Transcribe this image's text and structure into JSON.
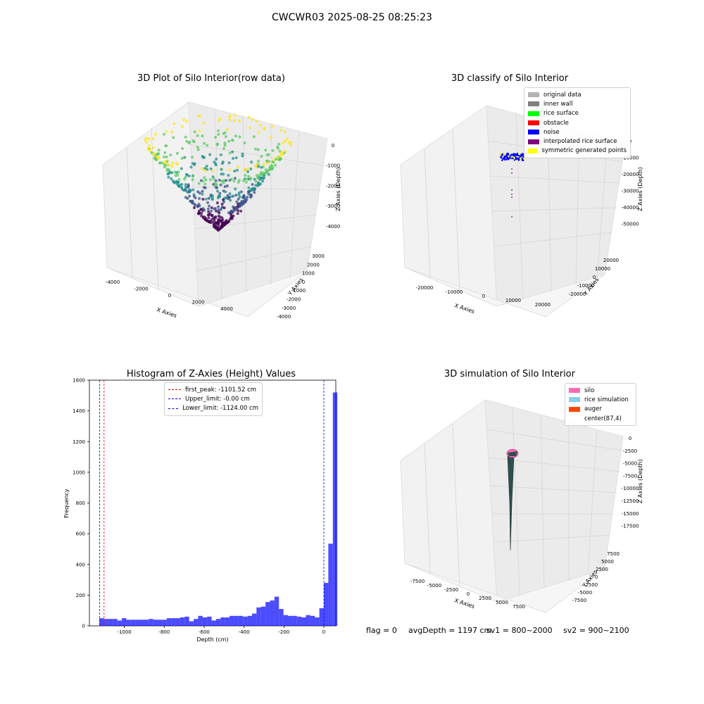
{
  "figure": {
    "title": "CWCWR03 2025-08-25 08:25:23"
  },
  "panels": {
    "raw": {
      "title": "3D Plot of Silo Interior(row data)",
      "x_label": "X Axies",
      "y_label": "Y Axies",
      "z_label": "Z Axies (Depth)",
      "x_ticks": [
        "-4000",
        "-2000",
        "0",
        "2000",
        "4000"
      ],
      "y_ticks": [
        "3000",
        "2000",
        "1000",
        "0",
        "-1000",
        "-2000",
        "-3000",
        "-4000"
      ],
      "z_ticks": [
        "0",
        "-1000",
        "-2000",
        "-3000",
        "-4000"
      ],
      "colormap": [
        "#440154",
        "#3b528b",
        "#21908c",
        "#5dc963",
        "#fde725"
      ]
    },
    "classify": {
      "title": "3D classify of Silo Interior",
      "x_label": "X Axies",
      "y_label": "Y Axies",
      "z_label": "Z Axies (Depth)",
      "x_ticks": [
        "-20000",
        "-10000",
        "0",
        "10000",
        "20000"
      ],
      "y_ticks": [
        "20000",
        "10000",
        "0",
        "-10000",
        "-20000"
      ],
      "z_ticks": [
        "0",
        "-10000",
        "-20000",
        "-30000",
        "-40000",
        "-50000"
      ],
      "legend": [
        {
          "label": "original data",
          "color": "#b3b3b3"
        },
        {
          "label": "inner wall",
          "color": "#808080"
        },
        {
          "label": "rice surface",
          "color": "#00ff00"
        },
        {
          "label": "obstacle",
          "color": "#ff0000"
        },
        {
          "label": "noise",
          "color": "#0000ff"
        },
        {
          "label": "interpolated rice surface",
          "color": "#800080"
        },
        {
          "label": "symmetric generated points",
          "color": "#ffff00"
        }
      ]
    },
    "histogram": {
      "title": "Histogram of Z-Axies (Height) Values",
      "x_label": "Depth (cm)",
      "y_label": "Frequency",
      "x_ticks": [
        "-1000",
        "-800",
        "-600",
        "-400",
        "-200",
        "0"
      ],
      "y_ticks": [
        "0",
        "200",
        "400",
        "600",
        "800",
        "1000",
        "1200",
        "1400",
        "1600"
      ],
      "bar_color": "#0000ff",
      "legend": [
        {
          "label": "first_peak: -1101.52 cm",
          "color": "#ff0000"
        },
        {
          "label": "Upper_limit: -0.00 cm",
          "color": "#0000ff"
        },
        {
          "label": "Lower_limit: -1124.00 cm",
          "color": "#0000ff"
        }
      ]
    },
    "simulation": {
      "title": "3D simulation of Silo Interior",
      "x_label": "X Axies",
      "y_label": "Y Axies",
      "z_label": "Z Axies (Depth)",
      "x_ticks": [
        "-7500",
        "-5000",
        "-2500",
        "0",
        "2500",
        "5000",
        "7500"
      ],
      "y_ticks": [
        "7500",
        "5000",
        "2500",
        "0",
        "-2500",
        "-5000",
        "-7500"
      ],
      "z_ticks": [
        "0",
        "-2500",
        "-5000",
        "-7500",
        "-10000",
        "-12500",
        "-15000",
        "-17500"
      ],
      "legend": [
        {
          "label": "silo",
          "color": "#ff69b4"
        },
        {
          "label": "rice simulation",
          "color": "#87ceeb"
        },
        {
          "label": "auger",
          "color": "#ff4500"
        },
        {
          "label": "center(87,4)",
          "color": ""
        }
      ]
    }
  },
  "footer": {
    "flag": "flag = 0",
    "avg_depth": "avgDepth = 1197 cm",
    "sv1": "sv1 = 800~2000",
    "sv2": "sv2 = 900~2100"
  },
  "chart_data": [
    {
      "type": "scatter",
      "title": "3D Plot of Silo Interior(row data)",
      "xlabel": "X Axies",
      "ylabel": "Y Axies",
      "zlabel": "Z Axies (Depth)",
      "xlim": [
        -4500,
        4500
      ],
      "ylim": [
        -4500,
        4000
      ],
      "zlim": [
        -4500,
        0
      ],
      "grid": true
    },
    {
      "type": "scatter",
      "title": "3D classify of Silo Interior",
      "xlabel": "X Axies",
      "ylabel": "Y Axies",
      "zlabel": "Z Axies (Depth)",
      "xlim": [
        -25000,
        25000
      ],
      "ylim": [
        -25000,
        25000
      ],
      "zlim": [
        -55000,
        0
      ],
      "legend_position": "top-right",
      "grid": true
    },
    {
      "type": "bar",
      "title": "Histogram of Z-Axies (Height) Values",
      "xlabel": "Depth (cm)",
      "ylabel": "Frequency",
      "xlim": [
        -1175,
        60
      ],
      "ylim": [
        0,
        1600
      ],
      "bin_width": 22.5,
      "bin_start": -1125,
      "values": [
        50,
        45,
        45,
        45,
        35,
        50,
        40,
        40,
        40,
        40,
        40,
        45,
        40,
        40,
        40,
        50,
        50,
        50,
        55,
        60,
        30,
        45,
        65,
        55,
        60,
        35,
        45,
        55,
        55,
        65,
        65,
        65,
        60,
        65,
        80,
        120,
        125,
        155,
        165,
        190,
        110,
        70,
        65,
        65,
        60,
        55,
        70,
        65,
        55,
        115,
        280,
        535,
        1520
      ],
      "vlines": [
        {
          "label": "first_peak: -1101.52 cm",
          "x": -1101.52,
          "color": "#ff0000"
        },
        {
          "label": "Upper_limit: -0.00 cm",
          "x": 0,
          "color": "#0000ff"
        },
        {
          "label": "Lower_limit: -1124.00 cm",
          "x": -1124,
          "color": "#0000ff"
        }
      ],
      "legend_position": "top-center",
      "grid": false
    },
    {
      "type": "scatter",
      "title": "3D simulation of Silo Interior",
      "xlabel": "X Axies",
      "ylabel": "Y Axies",
      "zlabel": "Z Axies (Depth)",
      "xlim": [
        -9000,
        9000
      ],
      "ylim": [
        -9000,
        9000
      ],
      "zlim": [
        -19000,
        0
      ],
      "legend_position": "top-right",
      "grid": true
    }
  ]
}
